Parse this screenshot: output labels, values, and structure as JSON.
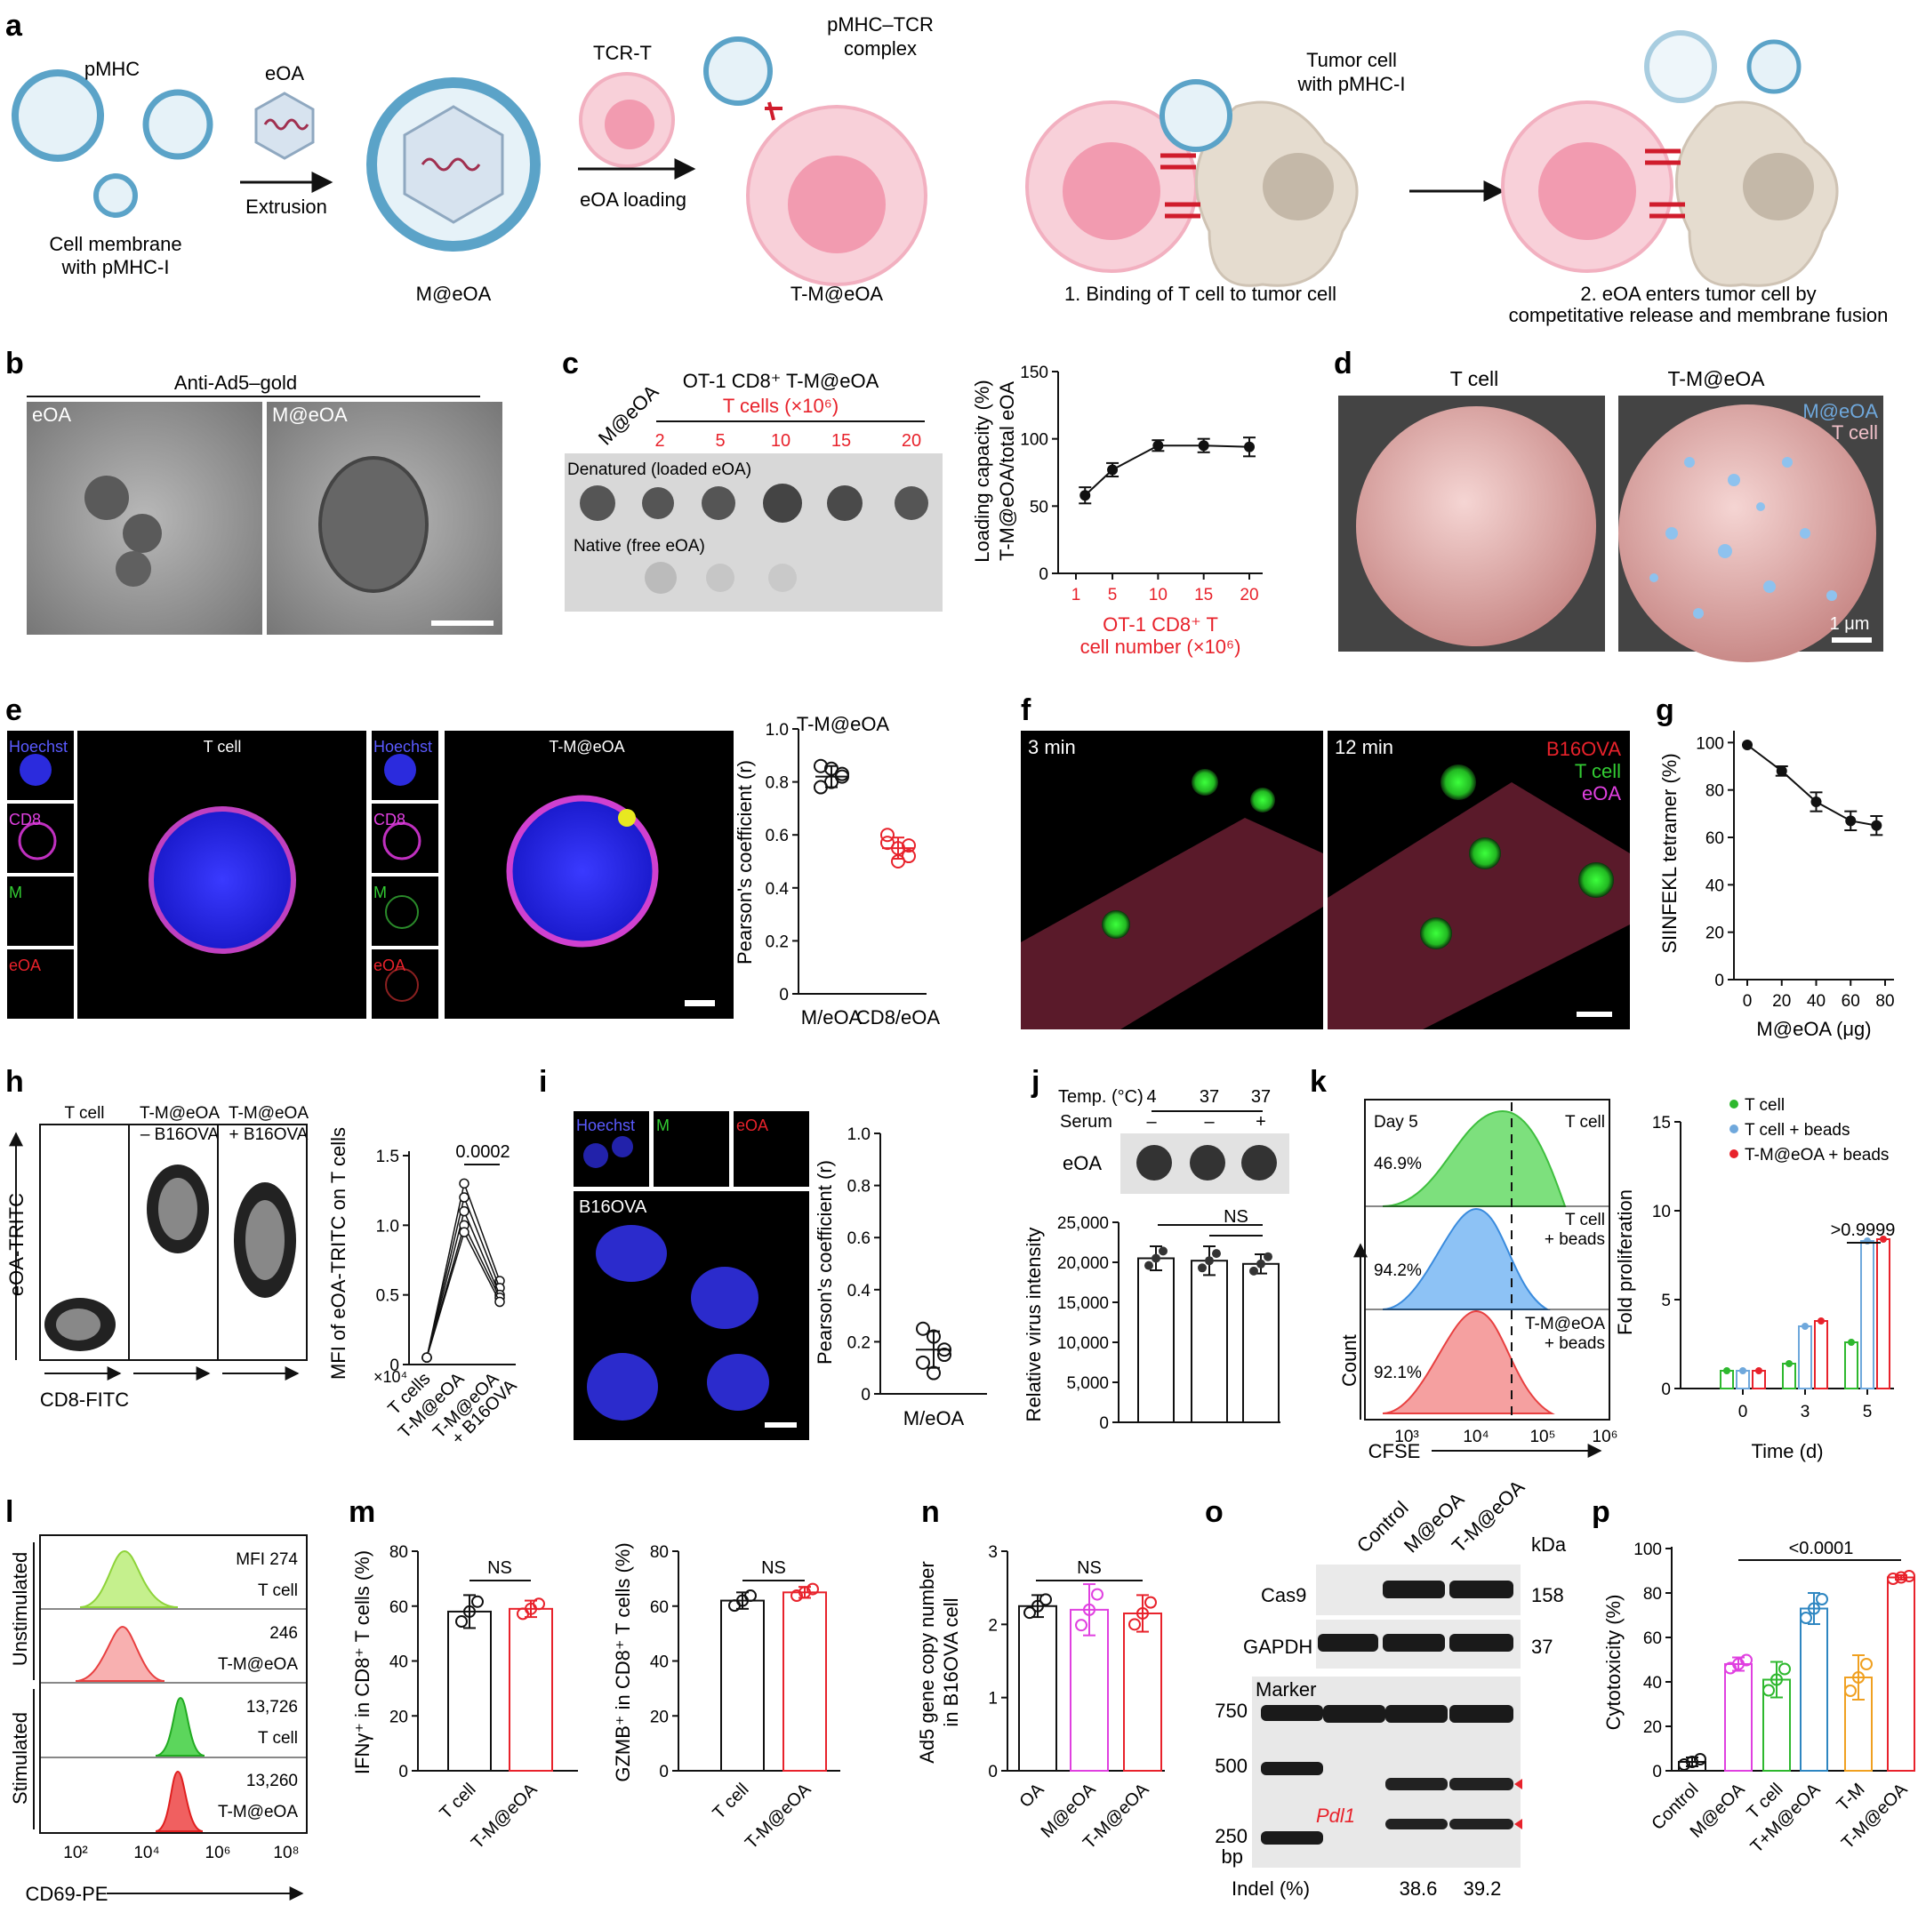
{
  "panels": {
    "a": {
      "letter": "a",
      "pmhc": "pMHC",
      "eoa": "eOA",
      "extrusion": "Extrusion",
      "cell_membrane_l1": "Cell membrane",
      "cell_membrane_l2": "with pMHC-I",
      "m_eoa": "M@eOA",
      "tcr_t": "TCR-T",
      "eoa_loading": "eOA loading",
      "pmhc_tcr_l1": "pMHC–TCR",
      "pmhc_tcr_l2": "complex",
      "t_m_eoa": "T-M@eOA",
      "tumor_l1": "Tumor cell",
      "tumor_l2": "with pMHC-I",
      "step1": "1. Binding of T cell to tumor cell",
      "step2_l1": "2. eOA enters tumor cell by",
      "step2_l2": "competitative release and membrane fusion"
    },
    "b": {
      "letter": "b",
      "header": "Anti-Ad5–gold",
      "label1": "eOA",
      "label2": "M@eOA"
    },
    "c": {
      "letter": "c",
      "m_eoa_label": "M@eOA",
      "title": "OT-1 CD8⁺ T-M@eOA",
      "tcells": "T cells (×10⁶)",
      "doses": [
        "2",
        "5",
        "10",
        "15",
        "20"
      ],
      "denatured": "Denatured (loaded eOA)",
      "native": "Native (free eOA)",
      "ylabel_l1": "Loading capacity (%)",
      "ylabel_l2": "T-M@eOA/total eOA",
      "xlabel_l1": "OT-1 CD8⁺ T",
      "xlabel_l2": "cell number (×10⁶)"
    },
    "d": {
      "letter": "d",
      "title1": "T cell",
      "title2": "T-M@eOA",
      "legend1": "M@eOA",
      "legend2": "T cell",
      "scale": "1 μm"
    },
    "e": {
      "letter": "e",
      "channels": [
        "Hoechst",
        "CD8",
        "M",
        "eOA"
      ],
      "title1": "T cell",
      "title2": "T-M@eOA",
      "chart_title": "T-M@eOA",
      "ylabel": "Pearson's coefficient (r)"
    },
    "f": {
      "letter": "f",
      "t1": "3 min",
      "t2": "12 min",
      "legend": [
        "B16OVA",
        "T cell",
        "eOA"
      ]
    },
    "g": {
      "letter": "g",
      "ylabel": "SIINFEKL tetramer (%)",
      "xlabel": "M@eOA (μg)"
    },
    "h": {
      "letter": "h",
      "col1": "T cell",
      "col2_l1": "T-M@eOA",
      "col2_l2": "– B16OVA",
      "col3_l1": "T-M@eOA",
      "col3_l2": "+ B16OVA",
      "ylabel": "eOA-TRITC",
      "xlabel": "CD8-FITC",
      "chart_ylabel": "MFI of eOA-TRITC on T cells",
      "multiplier": "×10⁴",
      "pvalue": "0.0002",
      "categories": [
        "T cells",
        "T-M@eOA",
        "T-M@eOA",
        "+ B16OVA"
      ]
    },
    "i": {
      "letter": "i",
      "channels": [
        "Hoechst",
        "M",
        "eOA"
      ],
      "main_label": "B16OVA",
      "ylabel": "Pearson's coefficient (r)"
    },
    "j": {
      "letter": "j",
      "temp_label": "Temp. (°C)",
      "temps": [
        "4",
        "37",
        "37"
      ],
      "serum_label": "Serum",
      "serum": [
        "–",
        "–",
        "+"
      ],
      "eoa": "eOA",
      "ylabel": "Relative virus intensity",
      "ns": "NS"
    },
    "k": {
      "letter": "k",
      "day": "Day 5",
      "hist_labels": [
        [
          "T cell",
          ""
        ],
        [
          "T cell",
          "+ beads"
        ],
        [
          "T-M@eOA",
          "+ beads"
        ]
      ],
      "pcts": [
        "46.9%",
        "94.2%",
        "92.1%"
      ],
      "ylabel": "Count",
      "xlabel": "CFSE",
      "xticks": [
        "10³",
        "10⁴",
        "10⁵",
        "10⁶"
      ],
      "chart_ylabel": "Fold proliferation",
      "chart_xlabel": "Time (d)",
      "pvalue": ">0.9999"
    },
    "l": {
      "letter": "l",
      "group1": "Unstimulated",
      "group2": "Stimulated",
      "rows": [
        {
          "mfi": "MFI 274",
          "name": "T cell"
        },
        {
          "mfi": "246",
          "name": "T-M@eOA"
        },
        {
          "mfi": "13,726",
          "name": "T cell"
        },
        {
          "mfi": "13,260",
          "name": "T-M@eOA"
        }
      ],
      "xticks": [
        "10²",
        "10⁴",
        "10⁶",
        "10⁸"
      ],
      "xlabel": "CD69-PE"
    },
    "m": {
      "letter": "m",
      "ylabel1": "IFNγ⁺ in CD8⁺ T cells (%)",
      "ylabel2": "GZMB⁺ in CD8⁺ T cells (%)",
      "ns": "NS"
    },
    "n": {
      "letter": "n",
      "ylabel_l1": "Ad5 gene copy number",
      "ylabel_l2": "in B16OVA cell",
      "ns": "NS"
    },
    "o": {
      "letter": "o",
      "lanes": [
        "Control",
        "M@eOA",
        "T-M@eOA"
      ],
      "kda": "kDa",
      "cas9": "Cas9",
      "cas9_kda": "158",
      "gapdh": "GAPDH",
      "gapdh_kda": "37",
      "marker": "Marker",
      "bp": [
        "750",
        "500",
        "250"
      ],
      "bp_unit": "bp",
      "gene": "Pdl1",
      "indel_label": "Indel (%)",
      "indel": [
        "38.6",
        "39.2"
      ]
    },
    "p": {
      "letter": "p",
      "ylabel": "Cytotoxicity (%)",
      "pvalue": "<0.0001"
    }
  },
  "colors": {
    "red": "#e8222b",
    "pink_cell": "#f3c2cc",
    "blue": "#2e86c1",
    "green": "#2eb82e",
    "magenta": "#e040e0",
    "orange": "#f0a020",
    "light_blue": "#6fa8dc",
    "tan": "#d9cfc4"
  },
  "chart_data": [
    {
      "panel": "c",
      "type": "line",
      "x": [
        2,
        5,
        10,
        15,
        20
      ],
      "values": [
        58,
        77,
        95,
        95,
        94
      ],
      "error": [
        6,
        5,
        4,
        5,
        7
      ],
      "ylim": [
        0,
        150
      ],
      "yticks": [
        0,
        50,
        100,
        150
      ],
      "xticks": [
        1,
        5,
        10,
        15,
        20
      ]
    },
    {
      "panel": "e",
      "type": "scatter",
      "categories": [
        "M/eOA",
        "CD8/eOA"
      ],
      "series": [
        {
          "values": [
            0.86,
            0.8,
            0.83,
            0.78,
            0.85,
            0.82
          ]
        },
        {
          "values": [
            0.6,
            0.55,
            0.52,
            0.57,
            0.5,
            0.56
          ]
        }
      ],
      "means": [
        0.82,
        0.55
      ],
      "ylim": [
        0,
        1.0
      ],
      "yticks": [
        0,
        0.2,
        0.4,
        0.6,
        0.8,
        1.0
      ]
    },
    {
      "panel": "g",
      "type": "line",
      "x": [
        0,
        20,
        40,
        60,
        75
      ],
      "values": [
        99,
        88,
        75,
        67,
        65
      ],
      "error": [
        0,
        2,
        4,
        4,
        4
      ],
      "ylim": [
        0,
        100
      ],
      "yticks": [
        0,
        20,
        40,
        60,
        80,
        100
      ],
      "xticks": [
        0,
        20,
        40,
        60,
        80
      ]
    },
    {
      "panel": "h",
      "type": "line",
      "categories": [
        "T cells",
        "T-M@eOA",
        "T-M@eOA + B16OVA"
      ],
      "series": [
        {
          "values": [
            0.05,
            1.3,
            0.6
          ]
        },
        {
          "values": [
            0.05,
            1.2,
            0.55
          ]
        },
        {
          "values": [
            0.05,
            1.1,
            0.5
          ]
        },
        {
          "values": [
            0.05,
            1.0,
            0.48
          ]
        },
        {
          "values": [
            0.05,
            0.95,
            0.45
          ]
        }
      ],
      "ylim": [
        0,
        1.5
      ],
      "yticks": [
        0,
        0.5,
        1.0,
        1.5
      ]
    },
    {
      "panel": "i",
      "type": "scatter",
      "categories": [
        "M/eOA"
      ],
      "values": [
        0.25,
        0.22,
        0.17,
        0.12,
        0.08,
        0.15
      ],
      "mean": 0.17,
      "ylim": [
        0,
        1.0
      ],
      "yticks": [
        0,
        0.2,
        0.4,
        0.6,
        0.8,
        1.0
      ]
    },
    {
      "panel": "j",
      "type": "bar",
      "categories": [
        "4",
        "37",
        "37 + serum"
      ],
      "values": [
        20500,
        20200,
        19800
      ],
      "error": [
        1500,
        1800,
        1200
      ],
      "ylim": [
        0,
        25000
      ],
      "yticks": [
        0,
        5000,
        10000,
        15000,
        20000,
        25000
      ],
      "ytick_labels": [
        "0",
        "5,000",
        "10,000",
        "15,000",
        "20,000",
        "25,000"
      ]
    },
    {
      "panel": "k",
      "type": "bar",
      "categories": [
        "0",
        "3",
        "5"
      ],
      "series": [
        {
          "name": "T cell",
          "values": [
            1.0,
            1.4,
            2.6
          ]
        },
        {
          "name": "T cell + beads",
          "values": [
            1.0,
            3.5,
            8.3
          ]
        },
        {
          "name": "T-M@eOA + beads",
          "values": [
            1.0,
            3.8,
            8.4
          ]
        }
      ],
      "ylim": [
        0,
        15
      ],
      "yticks": [
        0,
        5,
        10,
        15
      ]
    },
    {
      "panel": "m1",
      "type": "bar",
      "categories": [
        "T cell",
        "T-M@eOA"
      ],
      "values": [
        58,
        59
      ],
      "error": [
        6,
        3
      ],
      "ylim": [
        0,
        80
      ],
      "yticks": [
        0,
        20,
        40,
        60,
        80
      ]
    },
    {
      "panel": "m2",
      "type": "bar",
      "categories": [
        "T cell",
        "T-M@eOA"
      ],
      "values": [
        62,
        65
      ],
      "error": [
        3,
        2
      ],
      "ylim": [
        0,
        80
      ],
      "yticks": [
        0,
        20,
        40,
        60,
        80
      ]
    },
    {
      "panel": "n",
      "type": "bar",
      "categories": [
        "OA",
        "M@eOA",
        "T-M@eOA"
      ],
      "values": [
        2.25,
        2.2,
        2.15
      ],
      "error": [
        0.15,
        0.35,
        0.25
      ],
      "ylim": [
        0,
        3
      ],
      "yticks": [
        0,
        1,
        2,
        3
      ]
    },
    {
      "panel": "p",
      "type": "bar",
      "categories": [
        "Control",
        "M@eOA",
        "T cell",
        "T+M@eOA",
        "T-M",
        "T-M@eOA"
      ],
      "values": [
        4,
        48,
        41,
        73,
        42,
        87
      ],
      "error": [
        2,
        3,
        8,
        7,
        10,
        1
      ],
      "ylim": [
        0,
        100
      ],
      "yticks": [
        0,
        20,
        40,
        60,
        80,
        100
      ]
    }
  ]
}
